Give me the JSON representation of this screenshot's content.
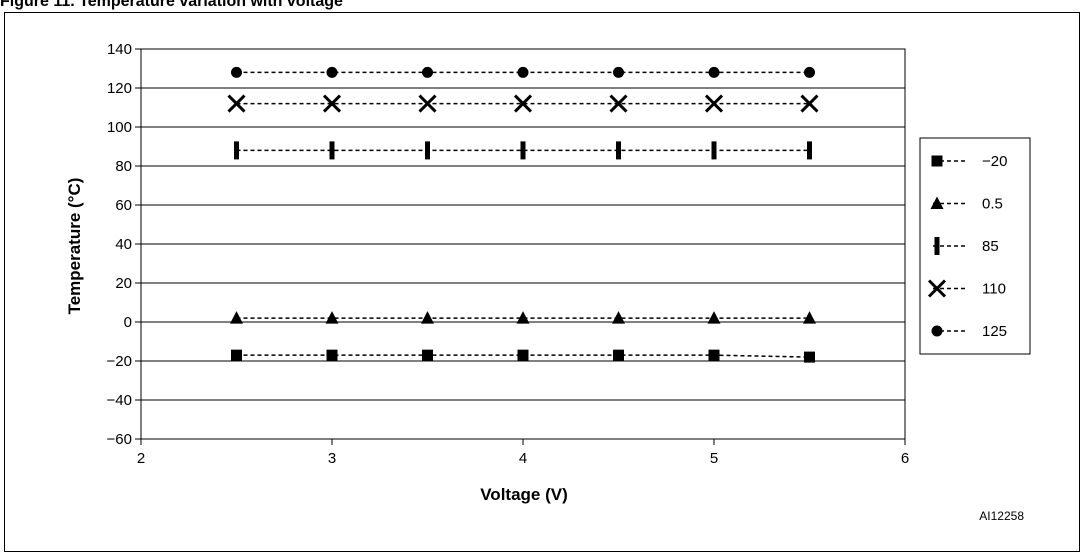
{
  "figure": {
    "title_fragment": "Figure 11. Temperature variation with voltage",
    "ref_code": "AI12258"
  },
  "chart_data": {
    "type": "line",
    "xlabel": "Voltage (V)",
    "ylabel": "Temperature (°C)",
    "xlim": [
      2,
      6
    ],
    "ylim": [
      -60,
      140
    ],
    "xticks": [
      "2",
      "3",
      "4",
      "5",
      "6"
    ],
    "yticks": [
      "−60",
      "−40",
      "−20",
      "0",
      "20",
      "40",
      "60",
      "80",
      "100",
      "120",
      "140"
    ],
    "grid": "horizontal",
    "legend_position": "right",
    "x": [
      2.5,
      3.0,
      3.5,
      4.0,
      4.5,
      5.0,
      5.5
    ],
    "series": [
      {
        "name": "−20",
        "marker": "square",
        "values": [
          -17,
          -17,
          -17,
          -17,
          -17,
          -17,
          -18
        ]
      },
      {
        "name": "0.5",
        "marker": "triangle",
        "values": [
          2,
          2,
          2,
          2,
          2,
          2,
          2
        ]
      },
      {
        "name": "85",
        "marker": "bar",
        "values": [
          88,
          88,
          88,
          88,
          88,
          88,
          88
        ]
      },
      {
        "name": "110",
        "marker": "x",
        "values": [
          112,
          112,
          112,
          112,
          112,
          112,
          112
        ]
      },
      {
        "name": "125",
        "marker": "circle",
        "values": [
          128,
          128,
          128,
          128,
          128,
          128,
          128
        ]
      }
    ]
  }
}
